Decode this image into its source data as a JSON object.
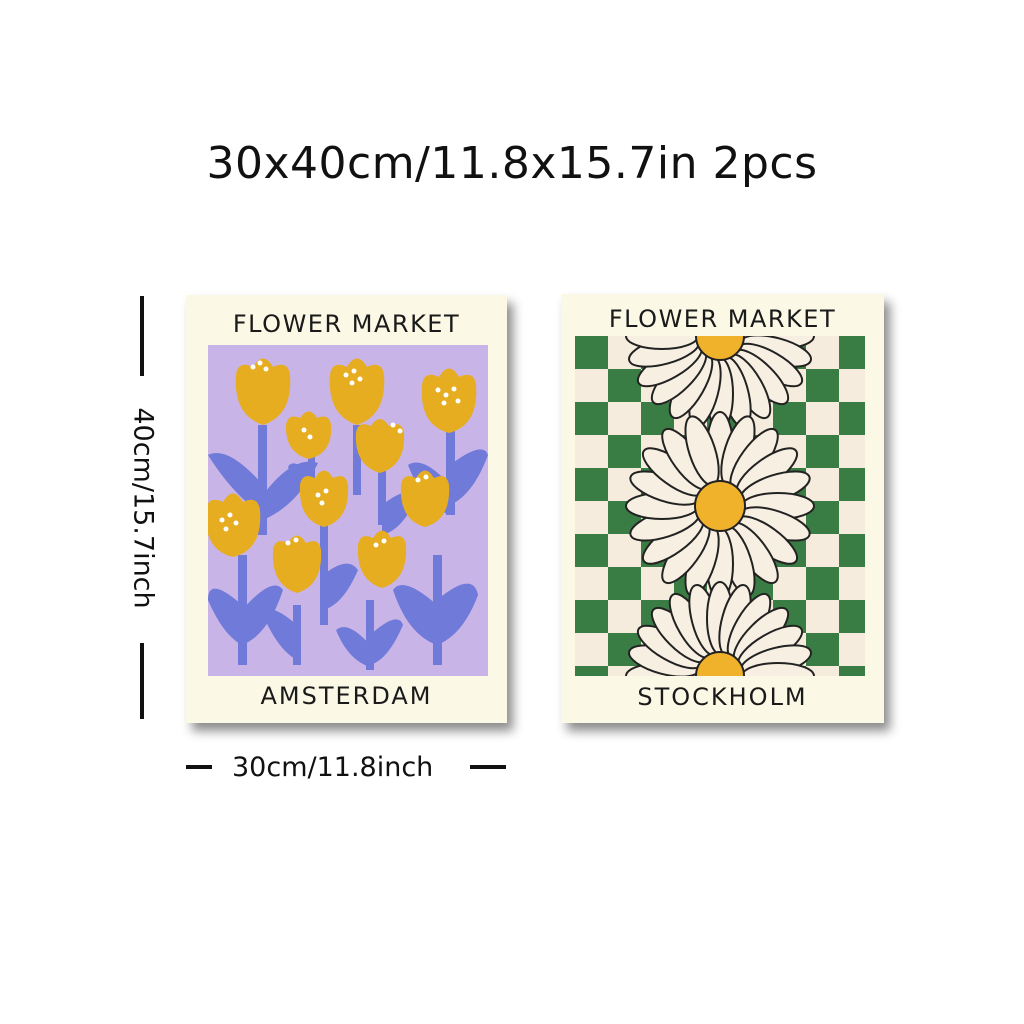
{
  "headline": "30x40cm/11.8x15.7in 2pcs",
  "dimensions": {
    "height_label": "40cm/15.7inch",
    "width_label": "30cm/11.8inch"
  },
  "posters": [
    {
      "title": "FLOWER MARKET",
      "city": "AMSTERDAM",
      "art": "tulip-illustration",
      "colors": {
        "background": "#c9b4e8",
        "petal": "#e7ad20",
        "stem": "#6f7ad9",
        "frame": "#fbf8e6"
      }
    },
    {
      "title": "FLOWER MARKET",
      "city": "STOCKHOLM",
      "art": "daisy-checkerboard-illustration",
      "colors": {
        "check_dark": "#3a7d44",
        "check_light": "#f6ecdd",
        "petal": "#f7efe2",
        "center": "#f0b22a",
        "frame": "#fbf8e6"
      }
    }
  ]
}
